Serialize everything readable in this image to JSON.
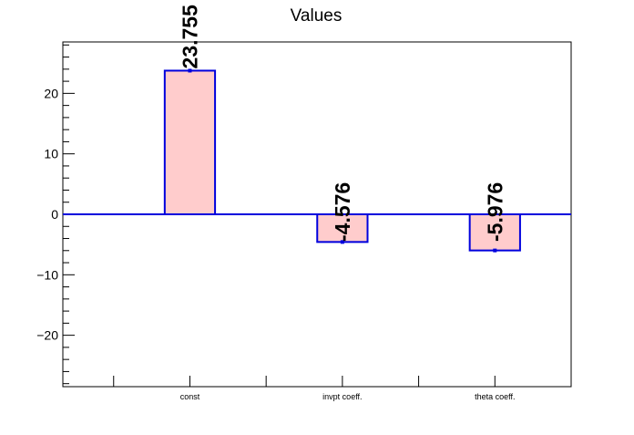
{
  "chart_data": {
    "type": "bar",
    "title": "Values",
    "xlabel": "",
    "ylabel": "",
    "categories": [
      "const",
      "invpt coeff.",
      "theta coeff."
    ],
    "values": [
      23.755,
      -4.576,
      -5.976
    ],
    "value_labels": [
      "23.755",
      "-4.576",
      "-5.976"
    ],
    "ylim": [
      -28.5,
      28.5
    ],
    "yticks": [
      -20,
      -10,
      0,
      10,
      20
    ],
    "ytick_labels": [
      "−20",
      "−10",
      "0",
      "10",
      "20"
    ],
    "grid": false,
    "legend": "none",
    "colors": {
      "bar_fill": "#ffcccc",
      "bar_edge": "#0000dd",
      "zero_line": "#0000dd",
      "axis": "#000000"
    }
  }
}
